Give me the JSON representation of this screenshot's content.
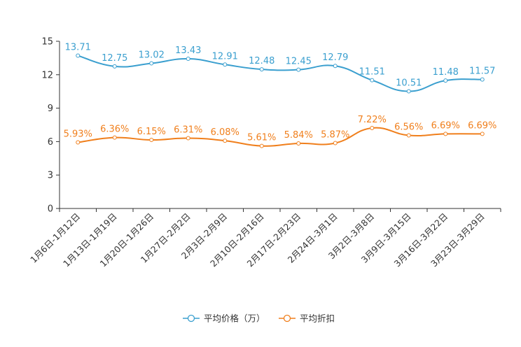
{
  "chart_data": {
    "type": "line",
    "title": "",
    "xlabel": "",
    "ylabel": "",
    "ylim": [
      0,
      15
    ],
    "yticks": [
      0,
      3,
      6,
      9,
      12,
      15
    ],
    "grid": false,
    "legend_position": "bottom-center",
    "categories": [
      "1月6日-1月12日",
      "1月13日-1月19日",
      "1月20日-1月26日",
      "1月27日-2月2日",
      "2月3日-2月9日",
      "2月10日-2月16日",
      "2月17日-2月23日",
      "2月24日-3月1日",
      "3月2日-3月8日",
      "3月9日-3月15日",
      "3月16日-3月22日",
      "3月23日-3月29日"
    ],
    "series": [
      {
        "name": "平均价格（万）",
        "color": "#3a9fcf",
        "values": [
          13.71,
          12.75,
          13.02,
          13.43,
          12.91,
          12.48,
          12.45,
          12.79,
          11.51,
          10.51,
          11.48,
          11.57
        ],
        "labels": [
          "13.71",
          "12.75",
          "13.02",
          "13.43",
          "12.91",
          "12.48",
          "12.45",
          "12.79",
          "11.51",
          "10.51",
          "11.48",
          "11.57"
        ]
      },
      {
        "name": "平均折扣",
        "color": "#f07f1c",
        "values": [
          5.93,
          6.36,
          6.15,
          6.31,
          6.08,
          5.61,
          5.84,
          5.87,
          7.22,
          6.56,
          6.69,
          6.69
        ],
        "labels": [
          "5.93%",
          "6.36%",
          "6.15%",
          "6.31%",
          "6.08%",
          "5.61%",
          "5.84%",
          "5.87%",
          "7.22%",
          "6.56%",
          "6.69%",
          "6.69%"
        ]
      }
    ]
  }
}
